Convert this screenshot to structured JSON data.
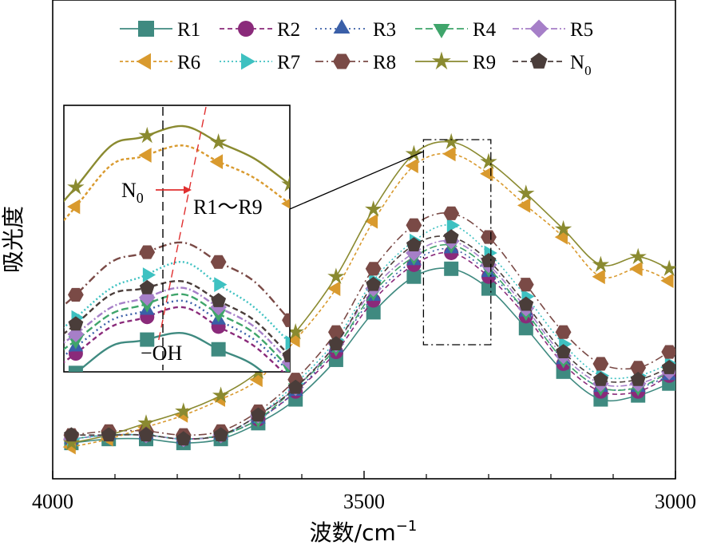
{
  "chart_data": {
    "type": "line",
    "xlabel": "波数/cm",
    "xlabel_exp": "−1",
    "ylabel": "吸光度",
    "xlim": [
      4000,
      3000
    ],
    "ylim": [
      0,
      1
    ],
    "x_reversed": true,
    "xticks": [
      4000,
      3500,
      3000
    ],
    "yticks_visible": false,
    "grid": false,
    "legend_position": "top",
    "x": [
      3970,
      3910,
      3850,
      3790,
      3730,
      3670,
      3610,
      3545,
      3485,
      3420,
      3360,
      3300,
      3240,
      3180,
      3120,
      3060,
      3010
    ],
    "series": [
      {
        "name": "R1",
        "color": "#3f8a80",
        "marker": "square",
        "dash": "solid",
        "values": [
          0.04,
          0.05,
          0.05,
          0.04,
          0.05,
          0.09,
          0.15,
          0.25,
          0.37,
          0.46,
          0.48,
          0.43,
          0.33,
          0.22,
          0.15,
          0.16,
          0.19
        ]
      },
      {
        "name": "R2",
        "color": "#8a2a7a",
        "marker": "circle",
        "dash": "6 4",
        "values": [
          0.05,
          0.06,
          0.06,
          0.05,
          0.06,
          0.1,
          0.17,
          0.27,
          0.4,
          0.49,
          0.52,
          0.46,
          0.36,
          0.24,
          0.17,
          0.17,
          0.21
        ]
      },
      {
        "name": "R3",
        "color": "#3a5fa8",
        "marker": "triangle-up",
        "dash": "2 4",
        "values": [
          0.05,
          0.06,
          0.06,
          0.05,
          0.06,
          0.1,
          0.17,
          0.28,
          0.41,
          0.5,
          0.53,
          0.47,
          0.37,
          0.25,
          0.18,
          0.18,
          0.21
        ]
      },
      {
        "name": "R4",
        "color": "#3fa56b",
        "marker": "triangle-down",
        "dash": "9 4",
        "values": [
          0.05,
          0.06,
          0.06,
          0.05,
          0.06,
          0.1,
          0.18,
          0.28,
          0.42,
          0.51,
          0.54,
          0.48,
          0.37,
          0.25,
          0.18,
          0.18,
          0.22
        ]
      },
      {
        "name": "R5",
        "color": "#a67fc8",
        "marker": "diamond",
        "dash": "8 3 2 3",
        "values": [
          0.05,
          0.06,
          0.06,
          0.05,
          0.06,
          0.11,
          0.18,
          0.29,
          0.43,
          0.52,
          0.55,
          0.49,
          0.38,
          0.26,
          0.19,
          0.19,
          0.22
        ]
      },
      {
        "name": "R6",
        "color": "#d99a2e",
        "marker": "triangle-left",
        "dash": "4 3",
        "values": [
          0.03,
          0.05,
          0.08,
          0.11,
          0.15,
          0.2,
          0.3,
          0.43,
          0.6,
          0.74,
          0.77,
          0.72,
          0.64,
          0.56,
          0.46,
          0.48,
          0.45
        ]
      },
      {
        "name": "R7",
        "color": "#3ec1c1",
        "marker": "triangle-right",
        "dash": "2 3",
        "values": [
          0.05,
          0.06,
          0.06,
          0.05,
          0.06,
          0.11,
          0.19,
          0.3,
          0.45,
          0.55,
          0.59,
          0.52,
          0.41,
          0.29,
          0.21,
          0.21,
          0.24
        ]
      },
      {
        "name": "R8",
        "color": "#7a4a46",
        "marker": "hexagon",
        "dash": "10 4 2 4",
        "values": [
          0.06,
          0.07,
          0.07,
          0.06,
          0.07,
          0.12,
          0.2,
          0.32,
          0.48,
          0.59,
          0.62,
          0.56,
          0.44,
          0.32,
          0.24,
          0.23,
          0.27
        ]
      },
      {
        "name": "R9",
        "color": "#8a8a30",
        "marker": "star",
        "dash": "solid",
        "values": [
          0.04,
          0.06,
          0.09,
          0.12,
          0.16,
          0.22,
          0.32,
          0.46,
          0.63,
          0.77,
          0.8,
          0.75,
          0.67,
          0.58,
          0.49,
          0.51,
          0.48
        ]
      },
      {
        "name": "N",
        "name_sub": "0",
        "color": "#4a3d3a",
        "marker": "pentagon",
        "dash": "7 4",
        "values": [
          0.06,
          0.06,
          0.06,
          0.05,
          0.06,
          0.11,
          0.18,
          0.29,
          0.44,
          0.54,
          0.56,
          0.5,
          0.39,
          0.27,
          0.2,
          0.2,
          0.23
        ]
      }
    ],
    "inset": {
      "region_x": [
        3420,
        3290
      ],
      "annotation_left_main": "N",
      "annotation_left_sub": "0",
      "annotation_arrow_target": "R1～R9",
      "annotation_bottom": "−OH"
    }
  }
}
